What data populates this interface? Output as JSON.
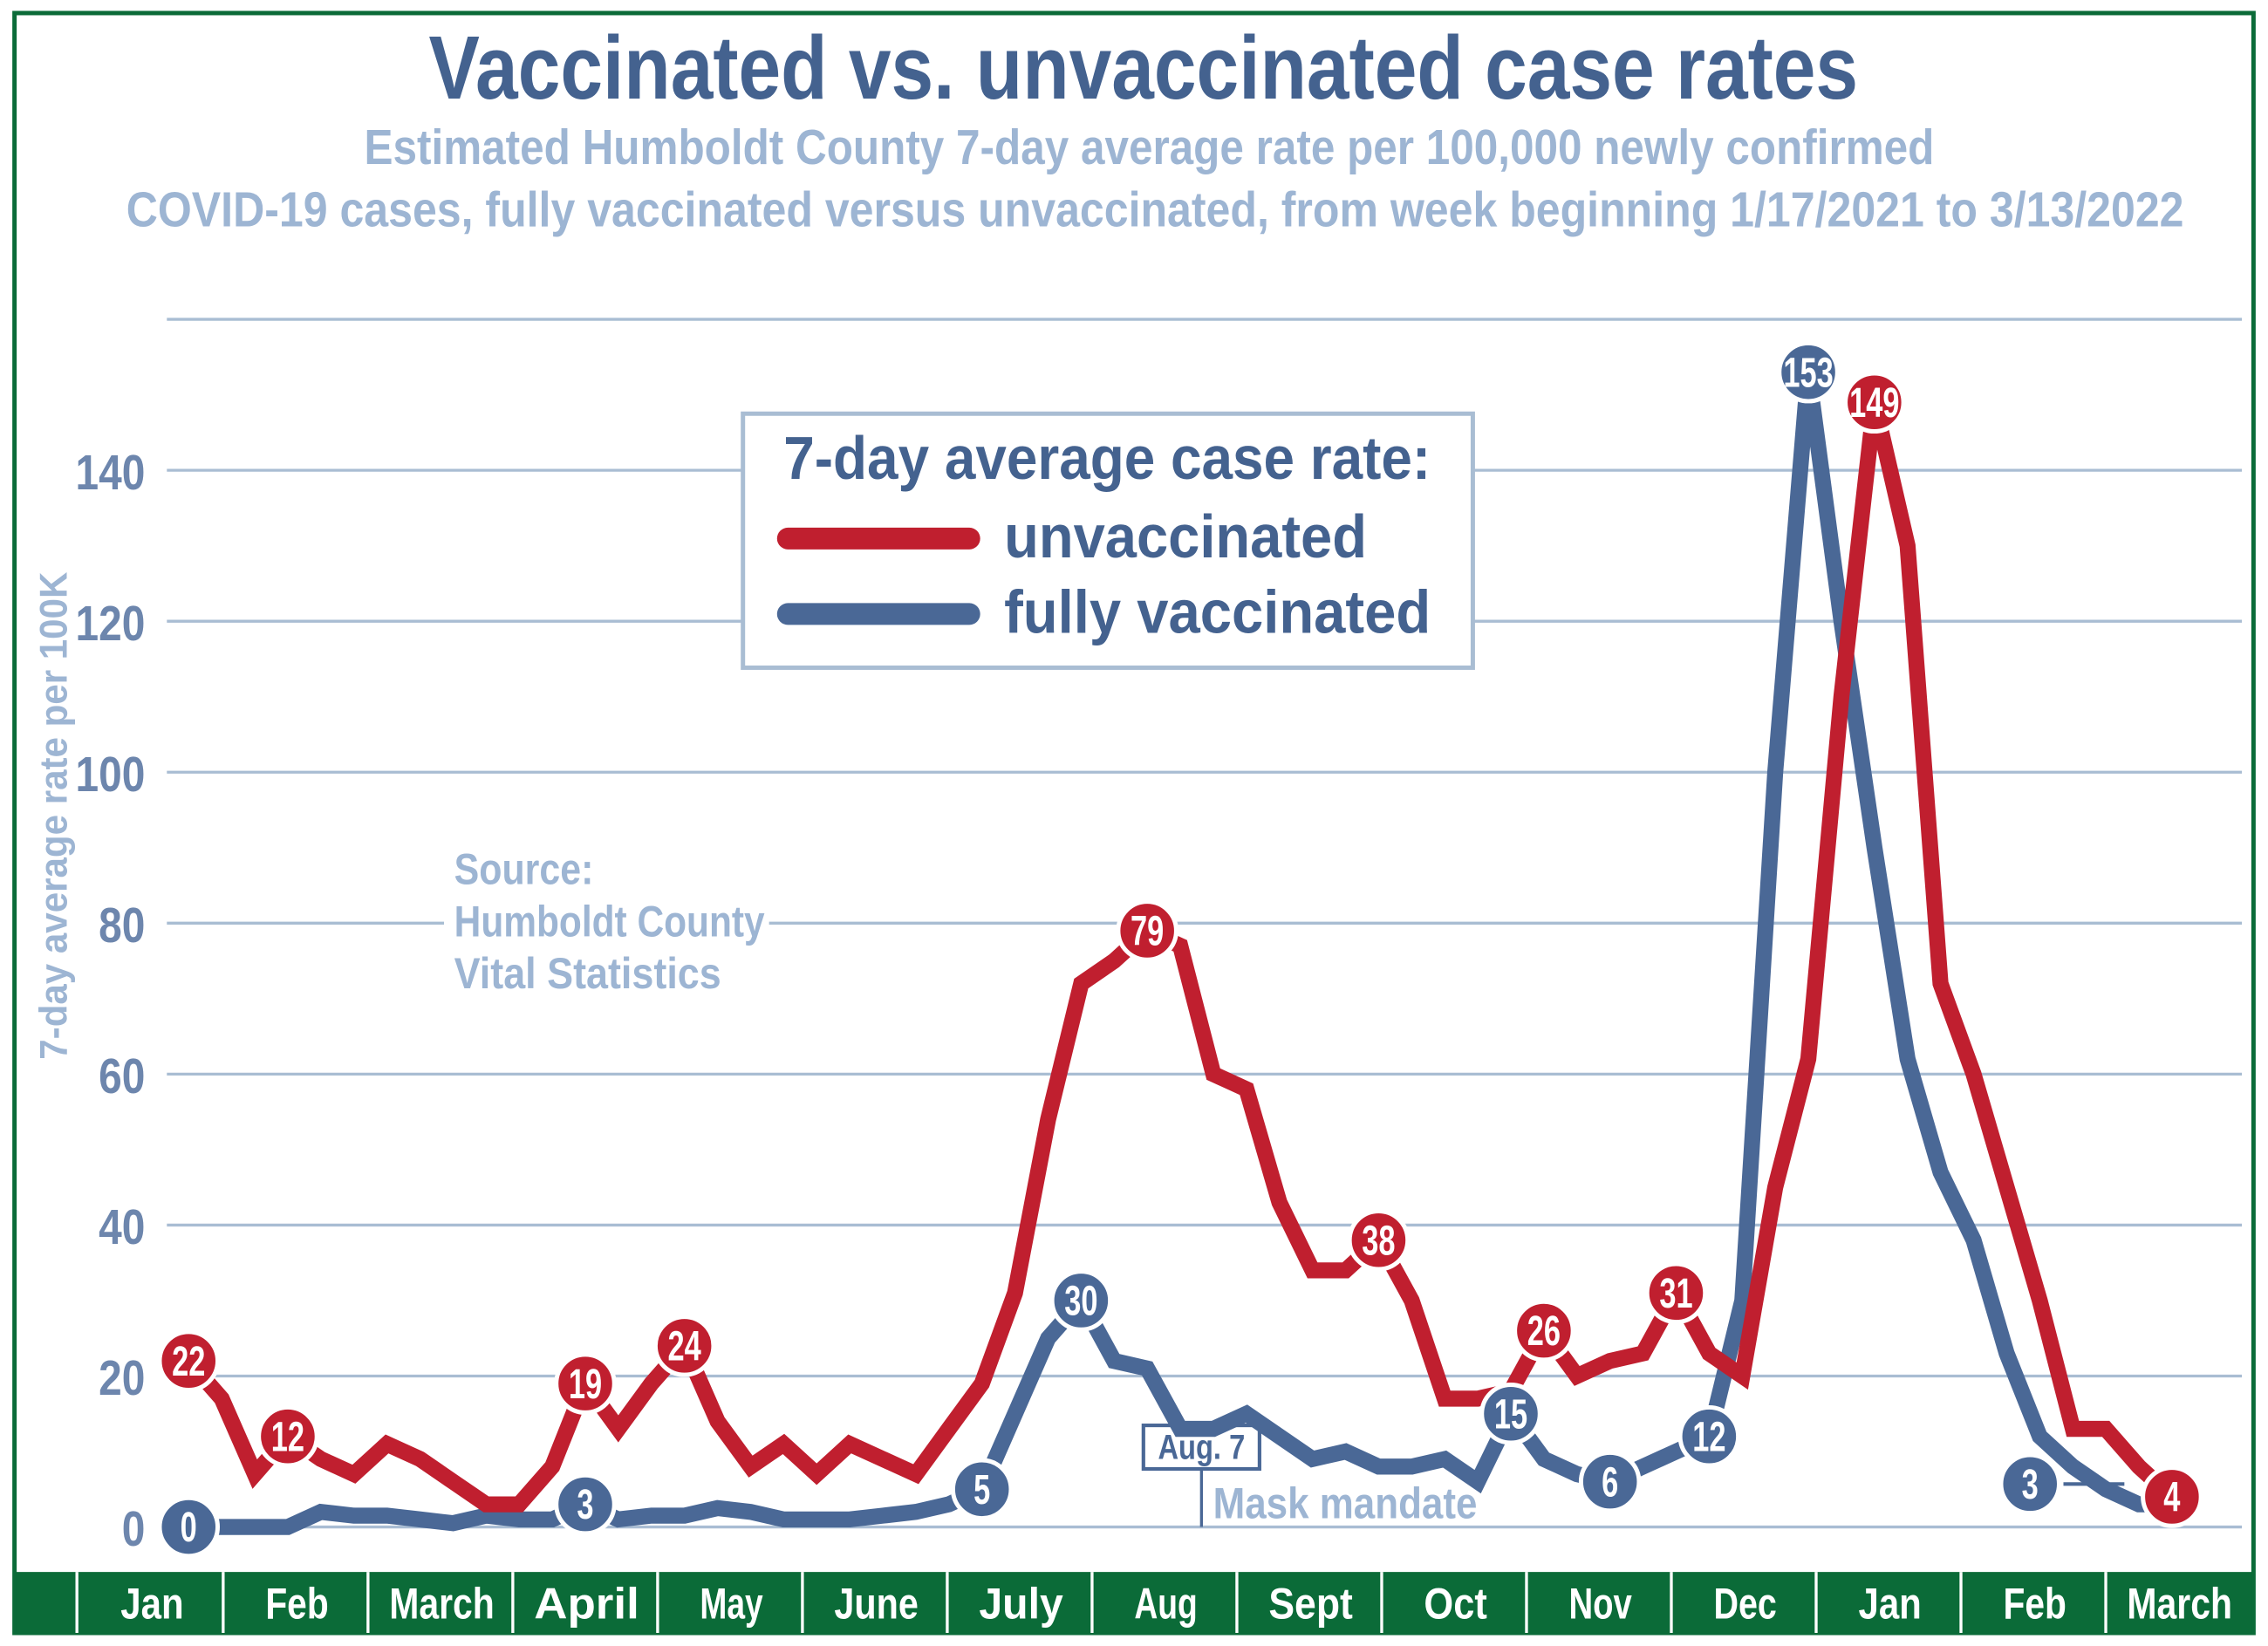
{
  "chart_data": {
    "type": "line",
    "title": "Vaccinated vs. unvaccinated case rates",
    "subtitle": [
      "Estimated Humboldt County 7-day average rate per 100,000 newly confirmed",
      "COVID-19 cases,  fully vaccinated versus unvaccinated, from week beginning 1/17/2021 to 3/13/2022"
    ],
    "ylabel": "7-day average rate per 100K",
    "xlabel": "",
    "ylim": [
      0,
      160
    ],
    "yticks": [
      0,
      20,
      40,
      60,
      80,
      100,
      120,
      140
    ],
    "grid": true,
    "x_start": "1/17/2021",
    "x_end": "3/13/2022",
    "x_interval": "weekly",
    "month_labels": [
      "Jan",
      "Feb",
      "March",
      "April",
      "May",
      "June",
      "July",
      "Aug",
      "Sept",
      "Oct",
      "Nov",
      "Dec",
      "Jan",
      "Feb",
      "March"
    ],
    "legend": {
      "title": "7-day average case rate:",
      "placement": "top-center"
    },
    "series": [
      {
        "name": "unvaccinated",
        "color": "#c01f2f",
        "values": [
          22,
          17,
          7,
          12,
          9,
          7,
          11,
          9,
          6,
          3,
          3,
          8,
          19,
          13,
          19,
          24,
          14,
          8,
          11,
          7,
          11,
          9,
          7,
          13,
          19,
          31,
          54,
          72,
          75,
          79,
          77,
          60,
          58,
          43,
          34,
          34,
          38,
          30,
          17,
          17,
          18,
          26,
          20,
          22,
          23,
          31,
          23,
          20,
          45,
          62,
          110,
          149,
          130,
          72,
          60,
          45,
          30,
          13,
          13,
          8,
          4
        ],
        "labels": [
          {
            "week": 0,
            "text": "22"
          },
          {
            "week": 3,
            "text": "12"
          },
          {
            "week": 12,
            "text": "19"
          },
          {
            "week": 15,
            "text": "24"
          },
          {
            "week": 29,
            "text": "79"
          },
          {
            "week": 36,
            "text": "38"
          },
          {
            "week": 41,
            "text": "26"
          },
          {
            "week": 45,
            "text": "31"
          },
          {
            "week": 51,
            "text": "149"
          },
          {
            "week": 60,
            "text": "4"
          }
        ]
      },
      {
        "name": "fully vaccinated",
        "color": "#4a6896",
        "values": [
          0,
          0,
          0,
          0,
          2,
          1.5,
          1.5,
          1,
          0.5,
          1.5,
          1,
          1,
          3,
          1,
          1.5,
          1.5,
          2.5,
          2,
          1,
          1,
          1,
          1.5,
          2,
          3,
          5,
          15,
          25,
          30,
          22,
          21,
          13,
          13,
          15,
          12,
          9,
          10,
          8,
          8,
          9,
          6,
          15,
          9,
          7,
          6,
          8,
          10,
          12,
          30,
          100,
          153,
          120,
          90,
          62,
          47,
          38,
          23,
          12,
          8,
          5,
          3,
          3
        ],
        "labels": [
          {
            "week": 0,
            "text": "0"
          },
          {
            "week": 12,
            "text": "3"
          },
          {
            "week": 24,
            "text": "5"
          },
          {
            "week": 27,
            "text": "30"
          },
          {
            "week": 40,
            "text": "15"
          },
          {
            "week": 43,
            "text": "6"
          },
          {
            "week": 46,
            "text": "12"
          },
          {
            "week": 49,
            "text": "153"
          },
          {
            "week": 59,
            "text": "3",
            "offset": true
          }
        ]
      }
    ],
    "annotations": {
      "mask": {
        "date": "Aug. 7",
        "text": "Mask mandate"
      },
      "source": [
        "Source:",
        "Humboldt County",
        "Vital Statistics"
      ]
    },
    "colors": {
      "title": "#44628f",
      "subtitle": "#9db5d3",
      "grid": "#a9bdd3",
      "month_band": "#0b6b38",
      "frame": "#0b6b38"
    }
  }
}
